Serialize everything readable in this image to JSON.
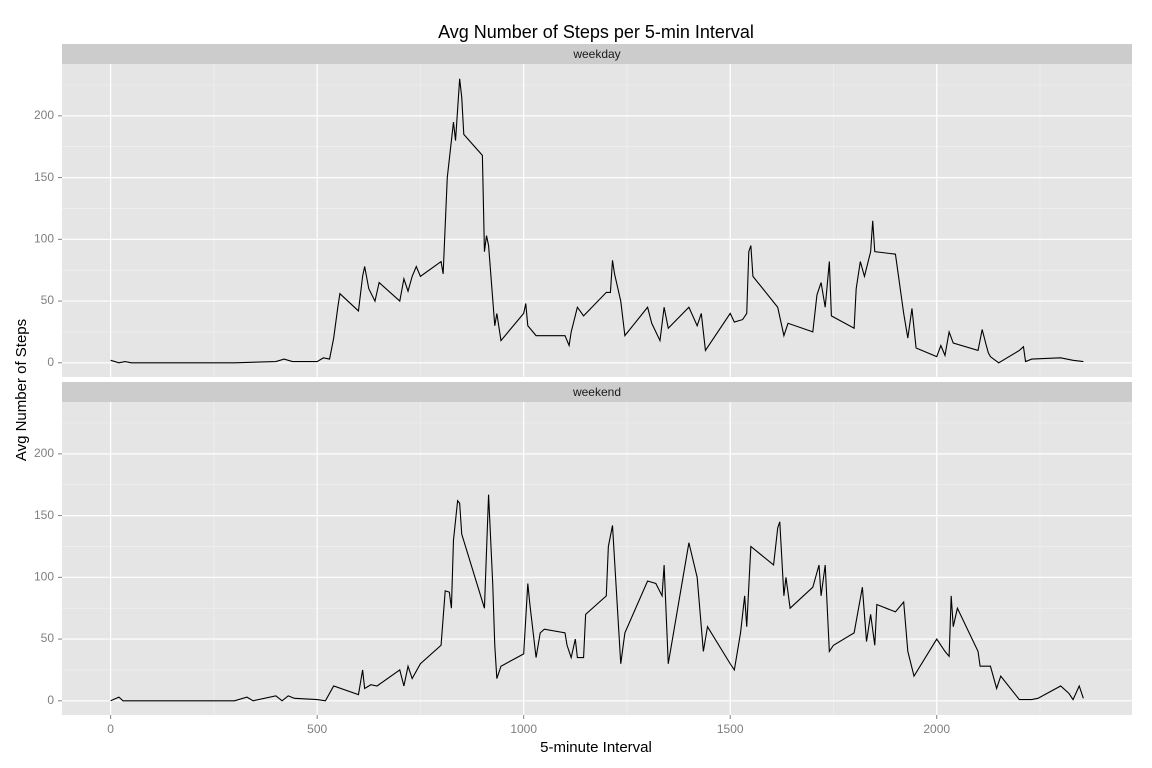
{
  "chart_data": {
    "type": "line",
    "title": "Avg Number of Steps per 5-min Interval",
    "xlabel": "5-minute Interval",
    "ylabel": "Avg Number of Steps",
    "xlim": [
      -117.75,
      2472.75
    ],
    "ylim": [
      -11.5,
      242
    ],
    "xticks": [
      0,
      500,
      1000,
      1500,
      2000
    ],
    "yticks": [
      0,
      50,
      100,
      150,
      200
    ],
    "grid": true,
    "series": [
      {
        "name": "weekday",
        "color": "#000000",
        "x": [
          0,
          20,
          35,
          50,
          100,
          200,
          300,
          400,
          420,
          440,
          500,
          515,
          530,
          540,
          550,
          555,
          600,
          610,
          615,
          625,
          640,
          650,
          700,
          710,
          720,
          730,
          740,
          750,
          800,
          805,
          815,
          830,
          835,
          845,
          850,
          855,
          900,
          905,
          910,
          915,
          930,
          935,
          945,
          1000,
          1005,
          1010,
          1030,
          1100,
          1110,
          1115,
          1130,
          1145,
          1200,
          1210,
          1215,
          1220,
          1235,
          1245,
          1300,
          1310,
          1330,
          1340,
          1350,
          1400,
          1420,
          1430,
          1440,
          1500,
          1510,
          1530,
          1540,
          1545,
          1550,
          1555,
          1615,
          1630,
          1640,
          1700,
          1710,
          1720,
          1730,
          1740,
          1745,
          1800,
          1805,
          1815,
          1825,
          1840,
          1845,
          1850,
          1900,
          1920,
          1930,
          1940,
          1950,
          2000,
          2010,
          2020,
          2030,
          2040,
          2100,
          2110,
          2120,
          2125,
          2130,
          2150,
          2200,
          2210,
          2215,
          2230,
          2300,
          2330,
          2355
        ],
        "values": [
          2,
          0,
          1,
          0,
          0,
          0,
          0,
          1,
          3,
          1,
          1,
          4,
          3,
          20,
          45,
          56,
          42,
          70,
          78,
          60,
          50,
          65,
          50,
          68,
          58,
          70,
          78,
          70,
          82,
          72,
          150,
          195,
          180,
          230,
          215,
          185,
          168,
          90,
          103,
          95,
          30,
          40,
          18,
          40,
          48,
          30,
          22,
          22,
          14,
          25,
          45,
          38,
          57,
          57,
          83,
          72,
          50,
          22,
          45,
          32,
          18,
          45,
          28,
          45,
          30,
          40,
          10,
          40,
          33,
          35,
          40,
          90,
          95,
          70,
          45,
          22,
          32,
          25,
          55,
          65,
          45,
          82,
          38,
          28,
          60,
          82,
          70,
          90,
          115,
          90,
          88,
          40,
          20,
          44,
          12,
          5,
          14,
          6,
          25,
          16,
          10,
          27,
          14,
          8,
          5,
          0,
          10,
          13,
          1,
          3,
          4,
          2,
          1
        ]
      },
      {
        "name": "weekend",
        "color": "#000000",
        "x": [
          0,
          20,
          30,
          100,
          200,
          300,
          330,
          345,
          400,
          415,
          430,
          445,
          500,
          520,
          540,
          600,
          610,
          615,
          630,
          645,
          700,
          710,
          720,
          730,
          750,
          800,
          810,
          820,
          825,
          830,
          840,
          845,
          850,
          905,
          915,
          925,
          930,
          935,
          945,
          1000,
          1010,
          1015,
          1030,
          1040,
          1050,
          1100,
          1105,
          1115,
          1125,
          1130,
          1145,
          1150,
          1200,
          1205,
          1215,
          1235,
          1245,
          1300,
          1320,
          1335,
          1340,
          1350,
          1400,
          1420,
          1435,
          1445,
          1500,
          1510,
          1525,
          1535,
          1540,
          1550,
          1605,
          1615,
          1620,
          1630,
          1635,
          1645,
          1700,
          1715,
          1720,
          1730,
          1740,
          1750,
          1800,
          1820,
          1830,
          1840,
          1850,
          1855,
          1900,
          1920,
          1930,
          1945,
          2000,
          2020,
          2030,
          2035,
          2040,
          2050,
          2100,
          2105,
          2130,
          2145,
          2155,
          2200,
          2215,
          2230,
          2245,
          2300,
          2320,
          2330,
          2345,
          2355
        ],
        "values": [
          0,
          3,
          0,
          0,
          0,
          0,
          3,
          0,
          4,
          0,
          4,
          2,
          1,
          0,
          12,
          5,
          25,
          10,
          13,
          12,
          25,
          12,
          28,
          18,
          30,
          45,
          89,
          88,
          75,
          130,
          162,
          160,
          135,
          75,
          167,
          95,
          45,
          18,
          28,
          38,
          95,
          78,
          35,
          55,
          58,
          55,
          45,
          35,
          50,
          35,
          35,
          70,
          85,
          125,
          142,
          30,
          55,
          97,
          95,
          85,
          110,
          30,
          128,
          100,
          40,
          60,
          30,
          25,
          55,
          85,
          60,
          125,
          110,
          140,
          145,
          85,
          100,
          75,
          92,
          110,
          85,
          110,
          40,
          45,
          55,
          92,
          48,
          70,
          45,
          78,
          72,
          80,
          40,
          20,
          50,
          40,
          36,
          85,
          60,
          75,
          40,
          28,
          28,
          10,
          20,
          1,
          1,
          1,
          2,
          12,
          6,
          1,
          12,
          2
        ]
      }
    ]
  }
}
